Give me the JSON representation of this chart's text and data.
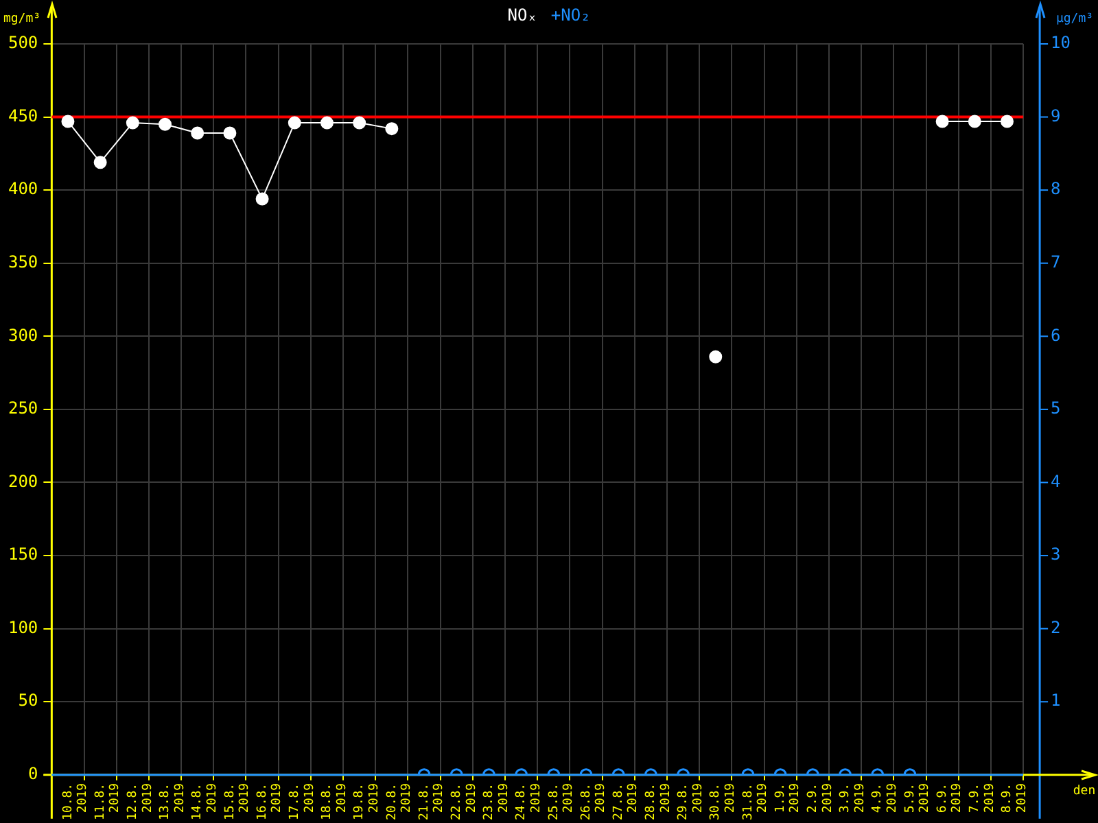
{
  "chart_data": {
    "type": "line",
    "categories": [
      "10.8. 2019",
      "11.8. 2019",
      "12.8. 2019",
      "13.8. 2019",
      "14.8. 2019",
      "15.8. 2019",
      "16.8. 2019",
      "17.8. 2019",
      "18.8. 2019",
      "19.8. 2019",
      "20.8. 2019",
      "21.8. 2019",
      "22.8. 2019",
      "23.8. 2019",
      "24.8. 2019",
      "25.8. 2019",
      "26.8. 2019",
      "27.8. 2019",
      "28.8. 2019",
      "29.8. 2019",
      "30.8. 2019",
      "31.8. 2019",
      "1.9. 2019",
      "2.9. 2019",
      "3.9. 2019",
      "4.9. 2019",
      "5.9. 2019",
      "6.9. 2019",
      "7.9. 2019",
      "8.9. 2019"
    ],
    "series": [
      {
        "name": "NOₓ",
        "color": "#ffffff",
        "values": [
          447,
          419,
          446,
          445,
          439,
          439,
          394,
          446,
          446,
          446,
          442,
          null,
          null,
          null,
          null,
          null,
          null,
          null,
          null,
          null,
          286,
          null,
          null,
          null,
          null,
          null,
          null,
          447,
          447,
          447
        ]
      },
      {
        "name": "+NO₂",
        "color": "#1e90ff",
        "axis": "y2",
        "type": "scatter",
        "values": [
          null,
          null,
          null,
          null,
          null,
          null,
          null,
          null,
          null,
          null,
          null,
          0,
          0,
          0,
          0,
          0,
          0,
          0,
          0,
          0,
          null,
          0,
          0,
          0,
          0,
          0,
          0,
          null,
          null,
          null
        ]
      }
    ],
    "ylabel": "mg/m³",
    "y2label": "µg/m³",
    "xlabel": "den",
    "ylim": [
      0,
      500
    ],
    "yticks": [
      0,
      50,
      100,
      150,
      200,
      250,
      300,
      350,
      400,
      450,
      500
    ],
    "y2lim": [
      0,
      10
    ],
    "y2ticks": [
      1,
      2,
      3,
      4,
      5,
      6,
      7,
      8,
      9,
      10
    ],
    "ref_lines": [
      {
        "axis": "y",
        "value": 450,
        "color": "#ff0000"
      }
    ],
    "grid": true,
    "legend": "top",
    "marker": "circle",
    "line_style": "solid"
  }
}
